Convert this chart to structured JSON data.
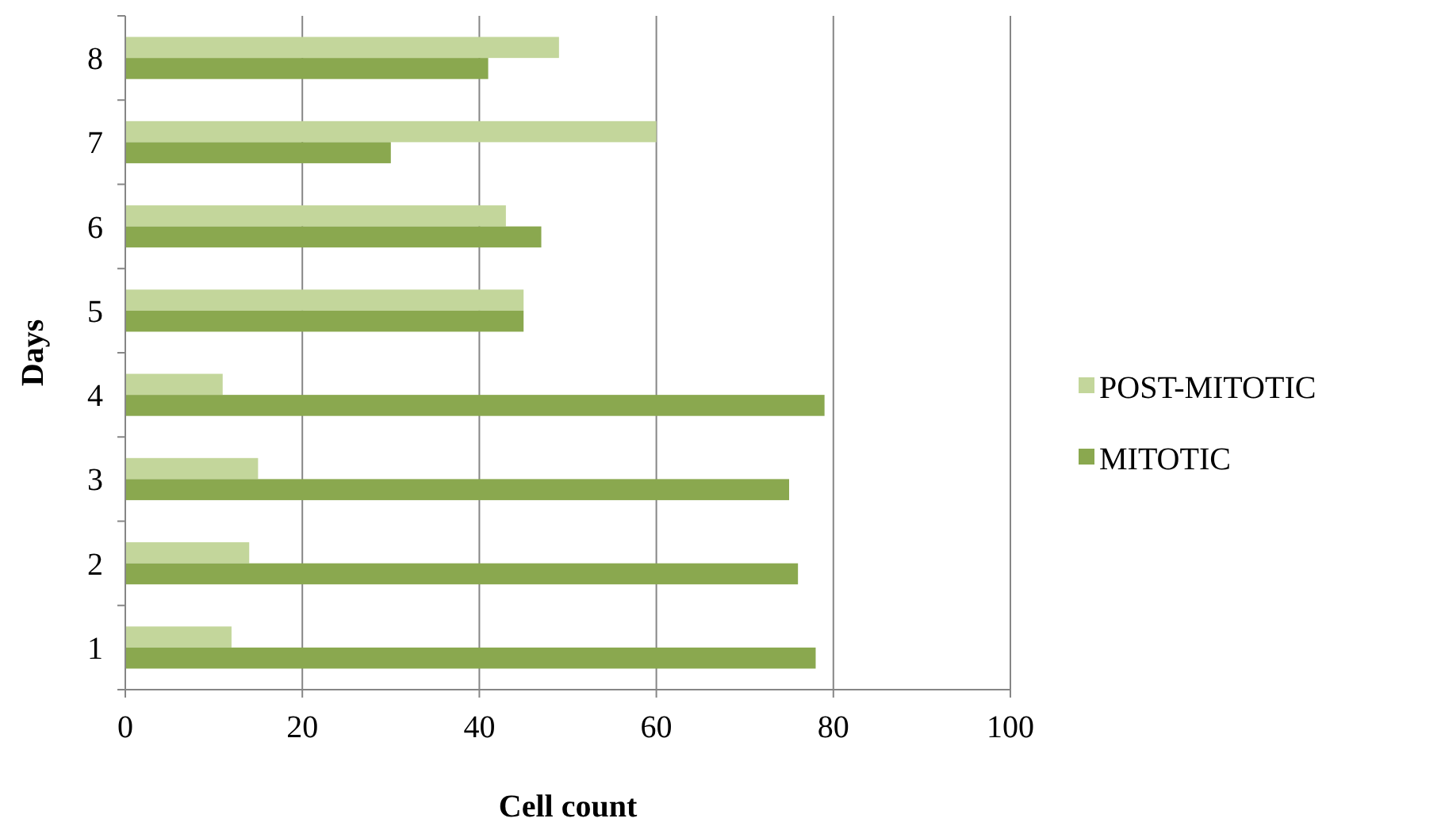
{
  "chart_data": {
    "type": "bar",
    "orientation": "horizontal",
    "xlabel": "Cell count",
    "ylabel": "Days",
    "categories": [
      "8",
      "7",
      "6",
      "5",
      "4",
      "3",
      "2",
      "1"
    ],
    "series": [
      {
        "name": "POST-MITOTIC",
        "color": "#c3d69b",
        "values": [
          49,
          60,
          43,
          45,
          11,
          15,
          14,
          12
        ]
      },
      {
        "name": "MITOTIC",
        "color": "#8aa84f",
        "values": [
          41,
          30,
          47,
          45,
          79,
          75,
          76,
          78
        ]
      }
    ],
    "xlim": [
      0,
      100
    ],
    "xticks": [
      0,
      20,
      40,
      60,
      80,
      100
    ],
    "grid": "x",
    "legend": "right"
  }
}
